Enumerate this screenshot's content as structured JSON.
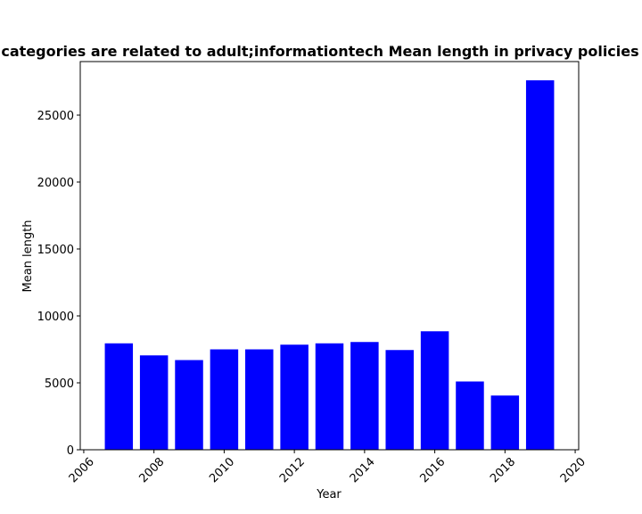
{
  "chart_data": {
    "type": "bar",
    "title": "categories are related to adult;informationtech Mean length in privacy policies",
    "xlabel": "Year",
    "ylabel": "Mean length",
    "x": [
      2007,
      2008,
      2009,
      2010,
      2011,
      2012,
      2013,
      2014,
      2015,
      2016,
      2017,
      2018,
      2019
    ],
    "values": [
      7950,
      7050,
      6700,
      7500,
      7500,
      7850,
      7950,
      8050,
      7450,
      8850,
      5100,
      4050,
      27600
    ],
    "xlim": [
      2005.9,
      2020.1
    ],
    "ylim": [
      0,
      29000
    ],
    "xticks": [
      "2006",
      "2008",
      "2010",
      "2012",
      "2014",
      "2016",
      "2018",
      "2020"
    ],
    "yticks": [
      "0",
      "5000",
      "10000",
      "15000",
      "20000",
      "25000"
    ],
    "bar_color": "#0000ff",
    "grid": false
  }
}
